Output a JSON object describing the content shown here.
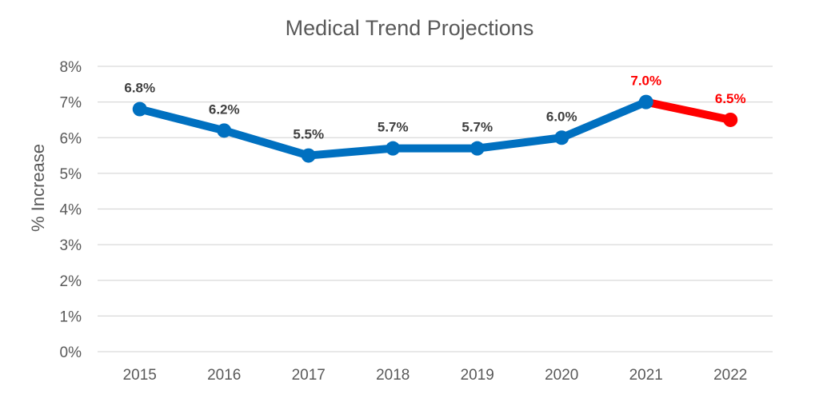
{
  "chart_data": {
    "type": "line",
    "title": "Medical Trend Projections",
    "xlabel": "",
    "ylabel": "% Increase",
    "categories": [
      "2015",
      "2016",
      "2017",
      "2018",
      "2019",
      "2020",
      "2021",
      "2022"
    ],
    "y_ticks": [
      "0%",
      "1%",
      "2%",
      "3%",
      "4%",
      "5%",
      "6%",
      "7%",
      "8%"
    ],
    "ylim": [
      0,
      8
    ],
    "grid": true,
    "series": [
      {
        "values": [
          6.8,
          6.2,
          5.5,
          5.7,
          5.7,
          6.0,
          7.0,
          6.5
        ],
        "labels": [
          "6.8%",
          "6.2%",
          "5.5%",
          "5.7%",
          "5.7%",
          "6.0%",
          "7.0%",
          "6.5%"
        ],
        "color": "#0070C0",
        "projection_color": "#FF0000",
        "projection_from_index": 6
      }
    ],
    "label_color_default": "#404040",
    "label_color_projection": "#FF0000",
    "gridline_color": "#D9D9D9"
  }
}
